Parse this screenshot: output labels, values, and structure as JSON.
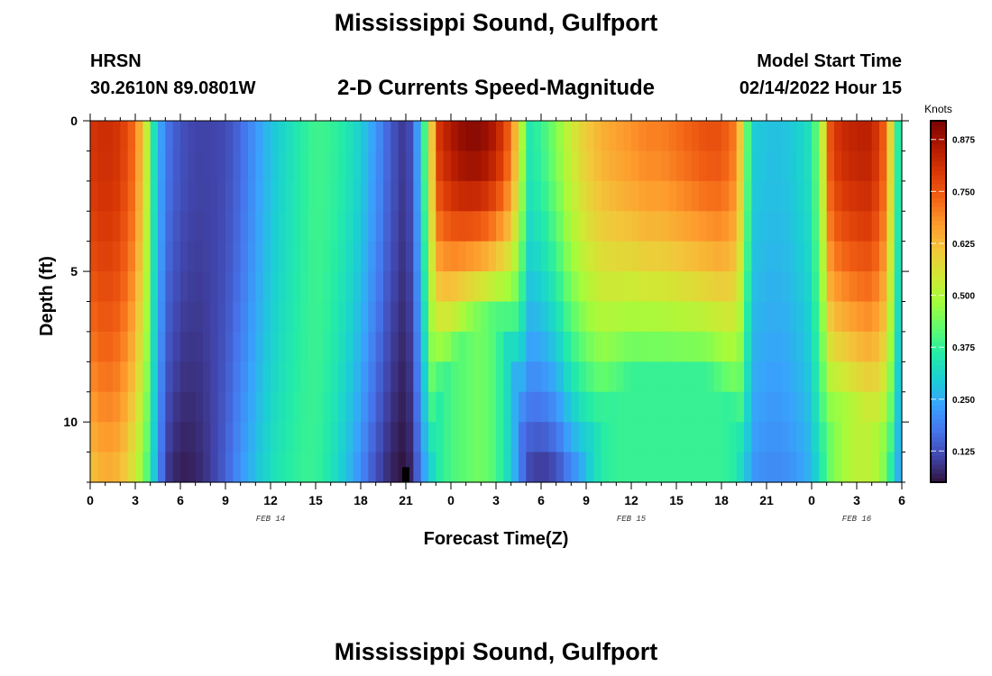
{
  "header": {
    "title": "Mississippi Sound, Gulfport",
    "station_id": "HRSN",
    "station_coords": "30.2610N  89.0801W",
    "plot_title": "2-D Currents Speed-Magnitude",
    "start_label": "Model Start Time",
    "start_value": "02/14/2022 Hour 15"
  },
  "footer": {
    "title": "Mississippi Sound, Gulfport"
  },
  "chart_data": {
    "type": "heatmap",
    "title": "2-D Currents Speed-Magnitude",
    "xlabel": "Forecast Time(Z)",
    "ylabel": "Depth (ft)",
    "colorbar_label": "Knots",
    "x_range_hours": [
      0,
      54
    ],
    "y_range_ft": [
      0,
      12
    ],
    "y_reversed": true,
    "x_tick_labels": [
      "0",
      "3",
      "6",
      "9",
      "12",
      "15",
      "18",
      "21",
      "0",
      "3",
      "6",
      "9",
      "12",
      "15",
      "18",
      "21",
      "0",
      "3",
      "6"
    ],
    "x_tick_hours": [
      0,
      3,
      6,
      9,
      12,
      15,
      18,
      21,
      24,
      27,
      30,
      33,
      36,
      39,
      42,
      45,
      48,
      51,
      54
    ],
    "y_tick_labels": [
      "0",
      "5",
      "10"
    ],
    "y_tick_values": [
      0,
      5,
      10
    ],
    "date_labels": [
      {
        "text": "FEB 14",
        "hour": 12
      },
      {
        "text": "FEB 15",
        "hour": 36
      },
      {
        "text": "FEB 16",
        "hour": 51
      }
    ],
    "colorbar_ticks": [
      "0.125",
      "0.250",
      "0.375",
      "0.500",
      "0.625",
      "0.750",
      "0.875"
    ],
    "colorbar_tick_values": [
      0.125,
      0.25,
      0.375,
      0.5,
      0.625,
      0.75,
      0.875
    ],
    "color_range": [
      0.05,
      0.92
    ],
    "grid": false,
    "depth_levels_ft": [
      0.5,
      1.5,
      2.5,
      3.5,
      4.5,
      5.5,
      6.5,
      7.5,
      8.5,
      9.5,
      10.5,
      11.5
    ],
    "surface_profile_knots": [
      [
        0,
        0.8
      ],
      [
        1,
        0.82
      ],
      [
        2,
        0.8
      ],
      [
        3,
        0.72
      ],
      [
        3.7,
        0.55
      ],
      [
        4.3,
        0.32
      ],
      [
        5,
        0.18
      ],
      [
        6,
        0.13
      ],
      [
        7,
        0.11
      ],
      [
        8,
        0.11
      ],
      [
        9,
        0.12
      ],
      [
        10,
        0.16
      ],
      [
        11,
        0.22
      ],
      [
        12,
        0.28
      ],
      [
        13,
        0.32
      ],
      [
        14,
        0.36
      ],
      [
        15,
        0.39
      ],
      [
        16,
        0.38
      ],
      [
        17,
        0.35
      ],
      [
        18,
        0.3
      ],
      [
        19,
        0.22
      ],
      [
        20,
        0.14
      ],
      [
        20.7,
        0.1
      ],
      [
        21.3,
        0.12
      ],
      [
        22,
        0.28
      ],
      [
        22.6,
        0.55
      ],
      [
        23.2,
        0.8
      ],
      [
        24,
        0.86
      ],
      [
        25,
        0.9
      ],
      [
        26,
        0.9
      ],
      [
        27,
        0.85
      ],
      [
        28,
        0.72
      ],
      [
        28.7,
        0.5
      ],
      [
        29.2,
        0.35
      ],
      [
        30,
        0.38
      ],
      [
        31,
        0.45
      ],
      [
        32,
        0.54
      ],
      [
        33,
        0.6
      ],
      [
        34,
        0.64
      ],
      [
        35,
        0.66
      ],
      [
        36,
        0.68
      ],
      [
        37,
        0.7
      ],
      [
        38,
        0.7
      ],
      [
        39,
        0.72
      ],
      [
        40,
        0.74
      ],
      [
        41,
        0.76
      ],
      [
        42,
        0.76
      ],
      [
        43,
        0.7
      ],
      [
        43.5,
        0.52
      ],
      [
        44,
        0.3
      ],
      [
        45,
        0.28
      ],
      [
        46,
        0.28
      ],
      [
        47,
        0.3
      ],
      [
        48,
        0.34
      ],
      [
        48.7,
        0.52
      ],
      [
        49.3,
        0.78
      ],
      [
        50,
        0.82
      ],
      [
        51,
        0.84
      ],
      [
        52,
        0.84
      ],
      [
        53,
        0.72
      ],
      [
        53.5,
        0.45
      ],
      [
        54,
        0.28
      ]
    ],
    "bottom_profile_knots": [
      [
        0,
        0.6
      ],
      [
        1,
        0.64
      ],
      [
        2,
        0.62
      ],
      [
        3,
        0.55
      ],
      [
        3.7,
        0.42
      ],
      [
        4.3,
        0.28
      ],
      [
        5,
        0.1
      ],
      [
        6,
        0.06
      ],
      [
        7,
        0.07
      ],
      [
        8,
        0.1
      ],
      [
        9,
        0.15
      ],
      [
        10,
        0.22
      ],
      [
        11,
        0.28
      ],
      [
        12,
        0.33
      ],
      [
        13,
        0.36
      ],
      [
        14,
        0.38
      ],
      [
        15,
        0.38
      ],
      [
        16,
        0.34
      ],
      [
        17,
        0.28
      ],
      [
        18,
        0.2
      ],
      [
        19,
        0.12
      ],
      [
        20,
        0.07
      ],
      [
        20.7,
        0.05
      ],
      [
        21.3,
        0.07
      ],
      [
        22,
        0.18
      ],
      [
        22.6,
        0.3
      ],
      [
        23.2,
        0.36
      ],
      [
        24,
        0.4
      ],
      [
        25,
        0.42
      ],
      [
        26,
        0.44
      ],
      [
        27,
        0.4
      ],
      [
        28,
        0.3
      ],
      [
        28.7,
        0.18
      ],
      [
        29.2,
        0.1
      ],
      [
        30,
        0.08
      ],
      [
        31,
        0.1
      ],
      [
        32,
        0.18
      ],
      [
        33,
        0.28
      ],
      [
        34,
        0.36
      ],
      [
        35,
        0.38
      ],
      [
        36,
        0.38
      ],
      [
        37,
        0.38
      ],
      [
        38,
        0.38
      ],
      [
        39,
        0.38
      ],
      [
        40,
        0.38
      ],
      [
        41,
        0.38
      ],
      [
        42,
        0.38
      ],
      [
        43,
        0.36
      ],
      [
        43.5,
        0.3
      ],
      [
        44,
        0.22
      ],
      [
        45,
        0.2
      ],
      [
        46,
        0.2
      ],
      [
        47,
        0.22
      ],
      [
        48,
        0.26
      ],
      [
        48.7,
        0.36
      ],
      [
        49.3,
        0.44
      ],
      [
        50,
        0.48
      ],
      [
        51,
        0.52
      ],
      [
        52,
        0.52
      ],
      [
        53,
        0.44
      ],
      [
        53.5,
        0.3
      ],
      [
        54,
        0.2
      ]
    ],
    "bottom_profile_levels": [
      [
        0,
        12
      ],
      [
        2,
        12
      ],
      [
        3,
        11
      ],
      [
        3.7,
        12
      ],
      [
        4.3,
        12
      ],
      [
        5,
        12
      ],
      [
        6,
        12
      ],
      [
        7,
        12
      ],
      [
        8,
        12
      ],
      [
        9,
        12
      ],
      [
        10,
        12
      ],
      [
        11,
        12
      ],
      [
        12,
        12
      ],
      [
        13,
        12
      ],
      [
        14,
        12
      ],
      [
        15,
        12
      ],
      [
        16,
        12
      ],
      [
        17,
        12
      ],
      [
        18,
        12
      ],
      [
        19,
        12
      ],
      [
        20,
        12
      ],
      [
        20.7,
        12
      ],
      [
        21.3,
        12
      ],
      [
        22,
        12
      ],
      [
        22.6,
        12
      ],
      [
        23.2,
        9
      ],
      [
        24,
        8
      ],
      [
        25,
        7
      ],
      [
        26,
        6.5
      ],
      [
        27,
        6.5
      ],
      [
        28,
        7.5
      ],
      [
        28.7,
        10
      ],
      [
        29.2,
        12
      ],
      [
        30,
        12
      ],
      [
        31,
        12
      ],
      [
        32,
        12
      ],
      [
        33,
        11
      ],
      [
        34,
        10
      ],
      [
        35,
        9
      ],
      [
        36,
        8.5
      ],
      [
        37,
        8.5
      ],
      [
        38,
        8.5
      ],
      [
        39,
        8.5
      ],
      [
        40,
        8.5
      ],
      [
        41,
        8.5
      ],
      [
        42,
        9
      ],
      [
        43,
        10
      ],
      [
        43.5,
        12
      ],
      [
        44,
        12
      ],
      [
        45,
        12
      ],
      [
        46,
        12
      ],
      [
        47,
        12
      ],
      [
        48,
        12
      ],
      [
        48.7,
        11
      ],
      [
        49.3,
        10
      ],
      [
        50,
        9.5
      ],
      [
        51,
        9.5
      ],
      [
        52,
        10
      ],
      [
        53,
        11
      ],
      [
        53.5,
        12
      ],
      [
        54,
        12
      ]
    ],
    "marker": {
      "hour": 21,
      "depth_range_ft": [
        11.5,
        12
      ]
    }
  },
  "colors": {
    "colormap": [
      "#30123b",
      "#4145ab",
      "#4675ed",
      "#39a2fc",
      "#1bcfd4",
      "#24eca6",
      "#61fc6c",
      "#a4fc3b",
      "#d1e834",
      "#f3c63a",
      "#fe9b2d",
      "#f36315",
      "#d93806",
      "#b11901",
      "#7a0403"
    ],
    "axis": "#000000",
    "marker": "#000000"
  }
}
